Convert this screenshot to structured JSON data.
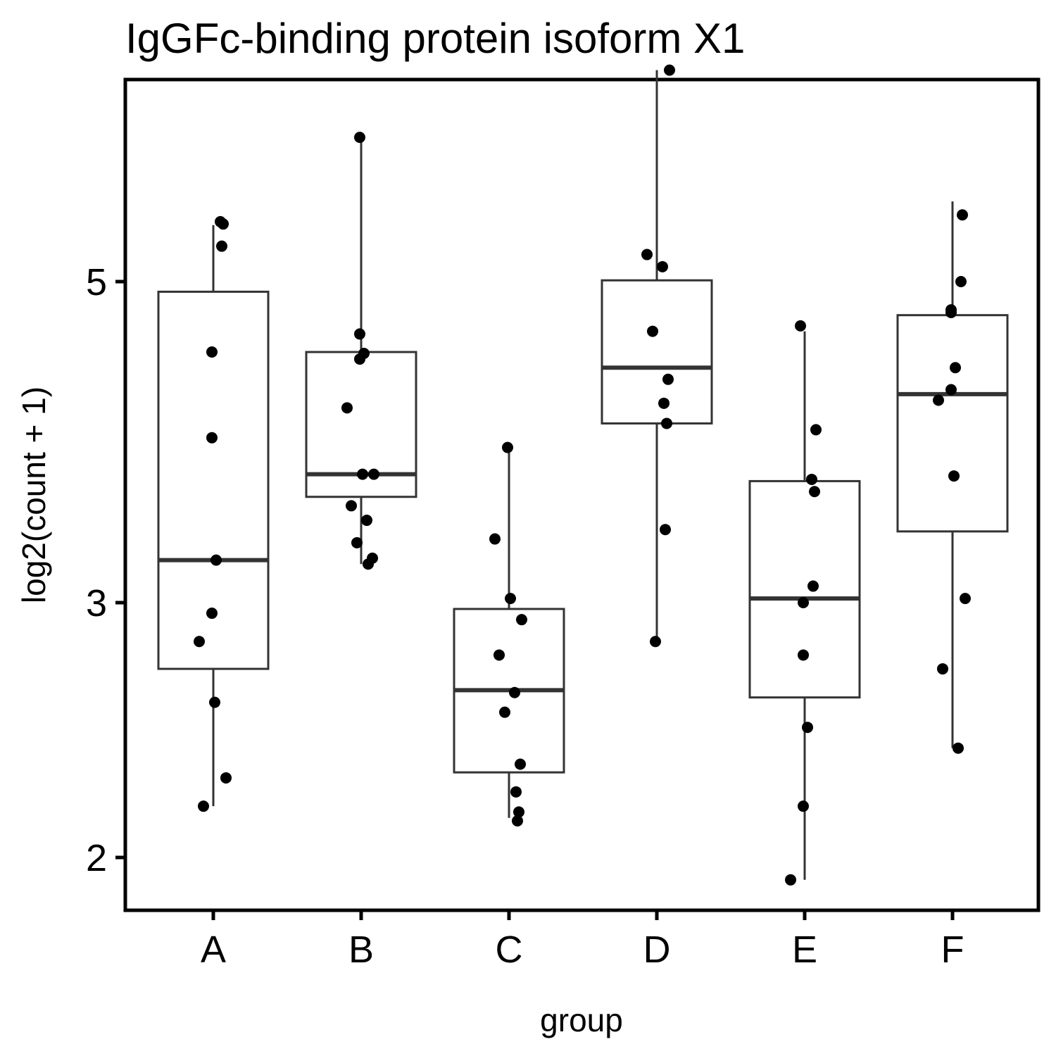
{
  "chart_data": {
    "type": "box",
    "title": "IgGFc-binding protein isoform X1",
    "xlabel": "group",
    "ylabel": "log2(count + 1)",
    "y_scale": "log",
    "ylim": [
      1.85,
      7.0
    ],
    "yticks": [
      2,
      3,
      5
    ],
    "ytick_labels": [
      "2",
      "3",
      "5"
    ],
    "categories": [
      "A",
      "B",
      "C",
      "D",
      "E",
      "F"
    ],
    "boxes": [
      {
        "group": "A",
        "min": 2.17,
        "q1": 2.7,
        "median": 3.21,
        "q3": 4.92,
        "max": 5.47
      },
      {
        "group": "B",
        "min": 3.19,
        "q1": 3.55,
        "median": 3.68,
        "q3": 4.47,
        "max": 6.29
      },
      {
        "group": "C",
        "min": 2.13,
        "q1": 2.29,
        "median": 2.61,
        "q3": 2.97,
        "max": 3.84
      },
      {
        "group": "D",
        "min": 2.82,
        "q1": 3.99,
        "median": 4.36,
        "q3": 5.01,
        "max": 7.0
      },
      {
        "group": "E",
        "min": 1.93,
        "q1": 2.58,
        "median": 3.02,
        "q3": 3.64,
        "max": 4.62
      },
      {
        "group": "F",
        "min": 2.38,
        "q1": 3.36,
        "median": 4.18,
        "q3": 4.74,
        "max": 5.68
      }
    ],
    "points": [
      {
        "group": "A",
        "values": [
          5.5,
          5.48,
          5.29,
          4.47,
          3.9,
          3.21,
          2.95,
          2.82,
          2.56,
          2.27,
          2.17
        ]
      },
      {
        "group": "B",
        "values": [
          6.29,
          4.6,
          4.46,
          4.42,
          4.09,
          3.68,
          3.68,
          3.5,
          3.42,
          3.3,
          3.22,
          3.19
        ]
      },
      {
        "group": "C",
        "values": [
          3.84,
          3.32,
          3.02,
          2.92,
          2.76,
          2.6,
          2.52,
          2.32,
          2.22,
          2.15,
          2.12
        ]
      },
      {
        "group": "D",
        "values": [
          7.0,
          5.22,
          5.12,
          4.62,
          4.28,
          4.12,
          3.99,
          3.37,
          2.82
        ]
      },
      {
        "group": "E",
        "values": [
          4.66,
          3.95,
          3.65,
          3.58,
          3.08,
          3.0,
          2.76,
          2.46,
          2.17,
          1.93
        ]
      },
      {
        "group": "F",
        "values": [
          5.56,
          5.0,
          4.78,
          4.76,
          4.36,
          4.21,
          4.14,
          3.67,
          3.02,
          2.7,
          2.38
        ]
      }
    ],
    "grid": false,
    "legend": "none",
    "colors": {
      "box_line": "#333333",
      "point": "#000000",
      "frame": "#000000"
    }
  }
}
